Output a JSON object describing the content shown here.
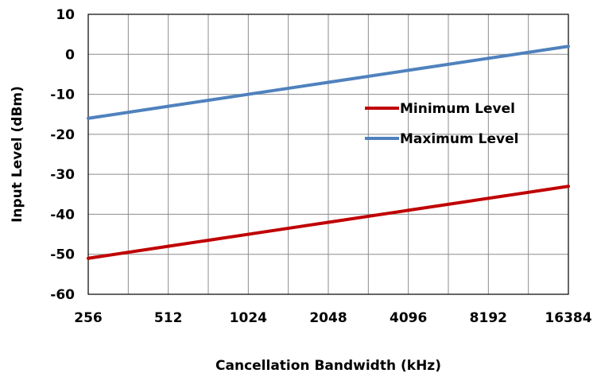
{
  "chart_data": {
    "type": "line",
    "title": "",
    "xlabel": "Cancellation Bandwidth (kHz)",
    "ylabel": "Input Level (dBm)",
    "x_scale": "log2",
    "x": [
      256,
      512,
      1024,
      2048,
      4096,
      8192,
      16384
    ],
    "x_tick_labels": [
      "256",
      "512",
      "1024",
      "2048",
      "4096",
      "8192",
      "16384"
    ],
    "ylim": [
      -60,
      10
    ],
    "y_ticks": [
      10,
      0,
      -10,
      -20,
      -30,
      -40,
      -50,
      -60
    ],
    "y_tick_labels": [
      "10",
      "0",
      "-10",
      "-20",
      "-30",
      "-40",
      "-50",
      "-60"
    ],
    "grid": true,
    "legend_position": "right",
    "series": [
      {
        "name": "Minimum Level",
        "color": "#c00000",
        "values": [
          -51,
          -48,
          -45,
          -42,
          -39,
          -36,
          -33
        ]
      },
      {
        "name": "Maximum Level",
        "color": "#4f81bd",
        "values": [
          -16,
          -13,
          -10,
          -7,
          -4,
          -1,
          2
        ]
      }
    ]
  }
}
